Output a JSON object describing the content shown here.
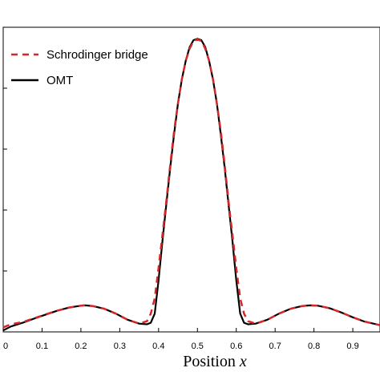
{
  "chart_data": {
    "type": "line",
    "title": "",
    "xlabel": "Position",
    "xlabel_var": "x",
    "ylabel": "",
    "xlim": [
      0,
      0.97
    ],
    "ylim": [
      0,
      1.0
    ],
    "grid": false,
    "legend_placement": "top-left",
    "x_ticks": [
      0,
      0.1,
      0.2,
      0.3,
      0.4,
      0.5,
      0.6,
      0.7,
      0.8,
      0.9
    ],
    "x_tick_labels": [
      "0",
      "0.1",
      "0.2",
      "0.3",
      "0.4",
      "0.5",
      "0.6",
      "0.7",
      "0.8",
      "0.9"
    ],
    "y_ticks": [
      0.0,
      0.2,
      0.4,
      0.6,
      0.8,
      1.0
    ],
    "series": [
      {
        "name": "Schrodinger bridge",
        "color": "#d62728",
        "dash": "dashed",
        "x": [
          0,
          0.02,
          0.05,
          0.08,
          0.11,
          0.14,
          0.17,
          0.2,
          0.21,
          0.23,
          0.26,
          0.29,
          0.32,
          0.35,
          0.37,
          0.38,
          0.39,
          0.4,
          0.41,
          0.42,
          0.43,
          0.44,
          0.45,
          0.46,
          0.47,
          0.48,
          0.49,
          0.5,
          0.51,
          0.52,
          0.53,
          0.54,
          0.55,
          0.56,
          0.57,
          0.58,
          0.59,
          0.6,
          0.61,
          0.62,
          0.63,
          0.65,
          0.68,
          0.71,
          0.74,
          0.77,
          0.79,
          0.81,
          0.84,
          0.87,
          0.9,
          0.93,
          0.97
        ],
        "y": [
          0.015,
          0.025,
          0.032,
          0.045,
          0.058,
          0.07,
          0.08,
          0.086,
          0.087,
          0.085,
          0.076,
          0.06,
          0.04,
          0.027,
          0.035,
          0.06,
          0.11,
          0.21,
          0.32,
          0.43,
          0.55,
          0.66,
          0.75,
          0.83,
          0.89,
          0.93,
          0.955,
          0.96,
          0.955,
          0.93,
          0.89,
          0.83,
          0.75,
          0.66,
          0.55,
          0.43,
          0.32,
          0.21,
          0.11,
          0.06,
          0.035,
          0.027,
          0.04,
          0.06,
          0.076,
          0.085,
          0.087,
          0.086,
          0.078,
          0.064,
          0.048,
          0.034,
          0.022
        ]
      },
      {
        "name": "OMT",
        "color": "#000000",
        "dash": "solid",
        "x": [
          0,
          0.02,
          0.05,
          0.08,
          0.11,
          0.14,
          0.17,
          0.2,
          0.21,
          0.23,
          0.26,
          0.29,
          0.32,
          0.35,
          0.37,
          0.38,
          0.39,
          0.4,
          0.41,
          0.42,
          0.43,
          0.44,
          0.45,
          0.46,
          0.47,
          0.48,
          0.49,
          0.5,
          0.51,
          0.52,
          0.53,
          0.54,
          0.55,
          0.56,
          0.57,
          0.58,
          0.59,
          0.6,
          0.61,
          0.62,
          0.63,
          0.65,
          0.68,
          0.71,
          0.74,
          0.77,
          0.79,
          0.81,
          0.84,
          0.87,
          0.9,
          0.93,
          0.97
        ],
        "y": [
          0.005,
          0.018,
          0.03,
          0.044,
          0.057,
          0.07,
          0.08,
          0.086,
          0.087,
          0.085,
          0.076,
          0.06,
          0.04,
          0.027,
          0.025,
          0.03,
          0.06,
          0.17,
          0.3,
          0.42,
          0.54,
          0.65,
          0.75,
          0.83,
          0.89,
          0.935,
          0.958,
          0.962,
          0.958,
          0.935,
          0.89,
          0.83,
          0.75,
          0.65,
          0.54,
          0.42,
          0.3,
          0.17,
          0.06,
          0.03,
          0.025,
          0.027,
          0.04,
          0.06,
          0.076,
          0.085,
          0.087,
          0.086,
          0.078,
          0.064,
          0.048,
          0.034,
          0.022
        ]
      }
    ]
  }
}
